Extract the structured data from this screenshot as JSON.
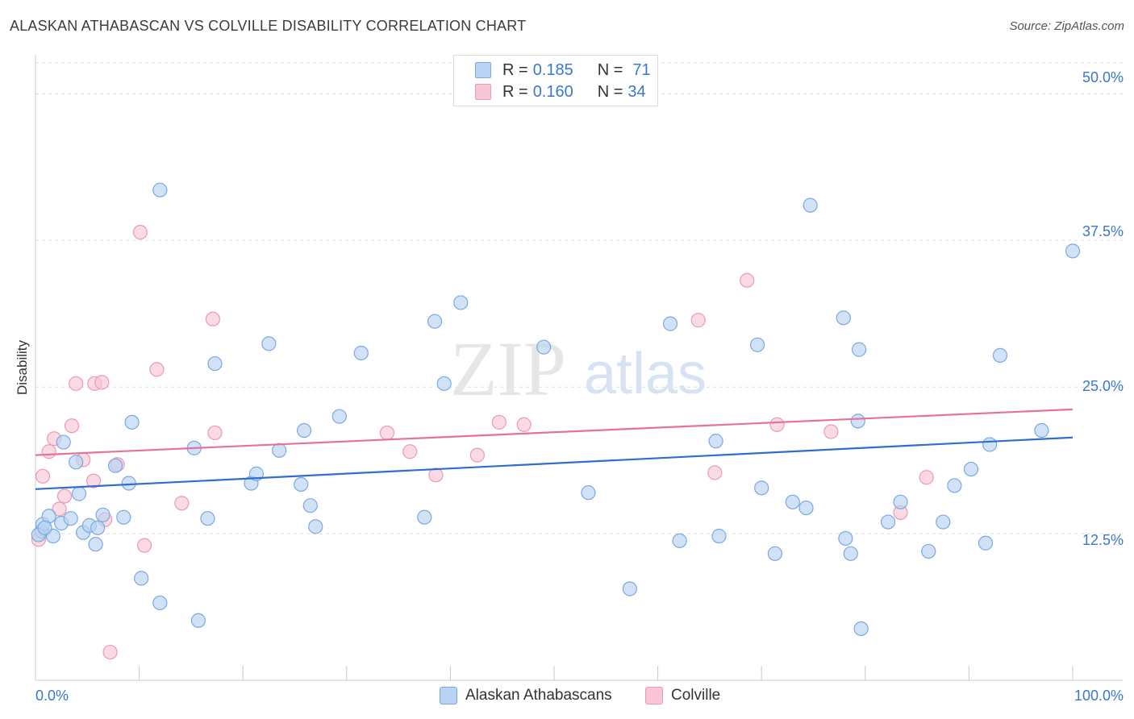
{
  "title": "ALASKAN ATHABASCAN VS COLVILLE DISABILITY CORRELATION CHART",
  "source": "Source: ZipAtlas.com",
  "watermark": {
    "zip": "ZIP",
    "atlas": "atlas"
  },
  "legend_top": [
    {
      "r_label": "R =",
      "r_value": "0.185",
      "n_label": "N =",
      "n_value": "71"
    },
    {
      "r_label": "R =",
      "r_value": "0.160",
      "n_label": "N =",
      "n_value": "34"
    }
  ],
  "colors": {
    "blue_fill": "#b8d3f3",
    "blue_stroke": "#7aa9e0",
    "blue_line": "#2f6fc9",
    "pink_fill": "#f8c6d4",
    "pink_stroke": "#ec9ab4",
    "pink_line": "#e4739a",
    "grid": "#dddddd",
    "axis_text": "#3a78c9"
  },
  "chart_data": {
    "type": "scatter",
    "title": "ALASKAN ATHABASCAN VS COLVILLE DISABILITY CORRELATION CHART",
    "xlabel": "",
    "ylabel": "Disability",
    "xlim": [
      0,
      100
    ],
    "ylim": [
      0,
      52.5
    ],
    "x_tick_labels": [
      "0.0%",
      "100.0%"
    ],
    "y_ticks": [
      12.5,
      25.0,
      37.5,
      50.0
    ],
    "y_tick_labels": [
      "12.5%",
      "25.0%",
      "37.5%",
      "50.0%"
    ],
    "legend": [
      "Alaskan Athabascans",
      "Colville"
    ],
    "series": [
      {
        "name": "Alaskan Athabascans",
        "color": "#b8d3f3",
        "trend": {
          "x": [
            0,
            100
          ],
          "y": [
            16.3,
            20.7
          ]
        },
        "points": [
          [
            0.6,
            12.7
          ],
          [
            0.7,
            13.3
          ],
          [
            1.3,
            14.0
          ],
          [
            1.7,
            12.3
          ],
          [
            2.5,
            13.4
          ],
          [
            2.7,
            20.3
          ],
          [
            3.4,
            13.8
          ],
          [
            3.9,
            18.6
          ],
          [
            4.2,
            15.9
          ],
          [
            4.6,
            12.6
          ],
          [
            5.2,
            13.2
          ],
          [
            5.8,
            11.6
          ],
          [
            6.0,
            13.0
          ],
          [
            6.5,
            14.1
          ],
          [
            7.7,
            18.3
          ],
          [
            8.5,
            13.9
          ],
          [
            9.0,
            16.8
          ],
          [
            9.3,
            22.0
          ],
          [
            10.2,
            8.7
          ],
          [
            12.0,
            41.8
          ],
          [
            12.0,
            6.6
          ],
          [
            15.3,
            19.8
          ],
          [
            15.7,
            5.1
          ],
          [
            16.6,
            13.8
          ],
          [
            17.3,
            27.0
          ],
          [
            20.8,
            16.8
          ],
          [
            21.3,
            17.6
          ],
          [
            22.5,
            28.7
          ],
          [
            23.5,
            19.6
          ],
          [
            25.6,
            16.7
          ],
          [
            25.9,
            21.3
          ],
          [
            26.5,
            14.9
          ],
          [
            27.0,
            13.1
          ],
          [
            29.3,
            22.5
          ],
          [
            31.4,
            27.9
          ],
          [
            37.5,
            13.9
          ],
          [
            38.5,
            30.6
          ],
          [
            39.4,
            25.3
          ],
          [
            41.0,
            32.2
          ],
          [
            49.0,
            28.4
          ],
          [
            53.3,
            16.0
          ],
          [
            57.3,
            7.8
          ],
          [
            61.2,
            30.4
          ],
          [
            62.1,
            11.9
          ],
          [
            65.6,
            20.4
          ],
          [
            65.9,
            12.3
          ],
          [
            69.6,
            28.6
          ],
          [
            70.0,
            16.4
          ],
          [
            71.3,
            10.8
          ],
          [
            73.0,
            15.2
          ],
          [
            74.3,
            14.7
          ],
          [
            74.7,
            40.5
          ],
          [
            77.9,
            30.9
          ],
          [
            78.1,
            12.1
          ],
          [
            78.6,
            10.8
          ],
          [
            79.3,
            22.1
          ],
          [
            79.4,
            28.2
          ],
          [
            79.6,
            4.4
          ],
          [
            82.2,
            13.5
          ],
          [
            83.4,
            15.2
          ],
          [
            86.1,
            11.0
          ],
          [
            87.5,
            13.5
          ],
          [
            88.6,
            16.6
          ],
          [
            90.2,
            18.0
          ],
          [
            91.6,
            11.7
          ],
          [
            92.0,
            20.1
          ],
          [
            93.0,
            27.7
          ],
          [
            97.0,
            21.3
          ],
          [
            100.0,
            36.6
          ],
          [
            0.3,
            12.4
          ],
          [
            0.9,
            13.0
          ]
        ]
      },
      {
        "name": "Colville",
        "color": "#f8c6d4",
        "trend": {
          "x": [
            0,
            100
          ],
          "y": [
            19.2,
            23.1
          ]
        },
        "points": [
          [
            0.3,
            12.0
          ],
          [
            0.7,
            17.4
          ],
          [
            1.3,
            19.5
          ],
          [
            1.8,
            20.6
          ],
          [
            2.3,
            14.6
          ],
          [
            2.8,
            15.7
          ],
          [
            3.5,
            21.7
          ],
          [
            3.9,
            25.3
          ],
          [
            4.6,
            18.8
          ],
          [
            5.6,
            17.0
          ],
          [
            5.7,
            25.3
          ],
          [
            6.4,
            25.4
          ],
          [
            6.7,
            13.7
          ],
          [
            7.2,
            2.4
          ],
          [
            7.9,
            18.4
          ],
          [
            10.1,
            38.2
          ],
          [
            10.5,
            11.5
          ],
          [
            11.7,
            26.5
          ],
          [
            14.1,
            15.1
          ],
          [
            17.1,
            30.8
          ],
          [
            17.3,
            21.1
          ],
          [
            33.9,
            21.1
          ],
          [
            36.1,
            19.5
          ],
          [
            38.6,
            17.5
          ],
          [
            42.6,
            19.2
          ],
          [
            44.7,
            22.0
          ],
          [
            47.1,
            21.8
          ],
          [
            63.9,
            30.7
          ],
          [
            65.5,
            17.7
          ],
          [
            68.6,
            34.1
          ],
          [
            71.5,
            21.8
          ],
          [
            76.7,
            21.2
          ],
          [
            83.4,
            14.3
          ],
          [
            85.9,
            17.3
          ]
        ]
      }
    ]
  },
  "bottom_legend": [
    "Alaskan Athabascans",
    "Colville"
  ]
}
